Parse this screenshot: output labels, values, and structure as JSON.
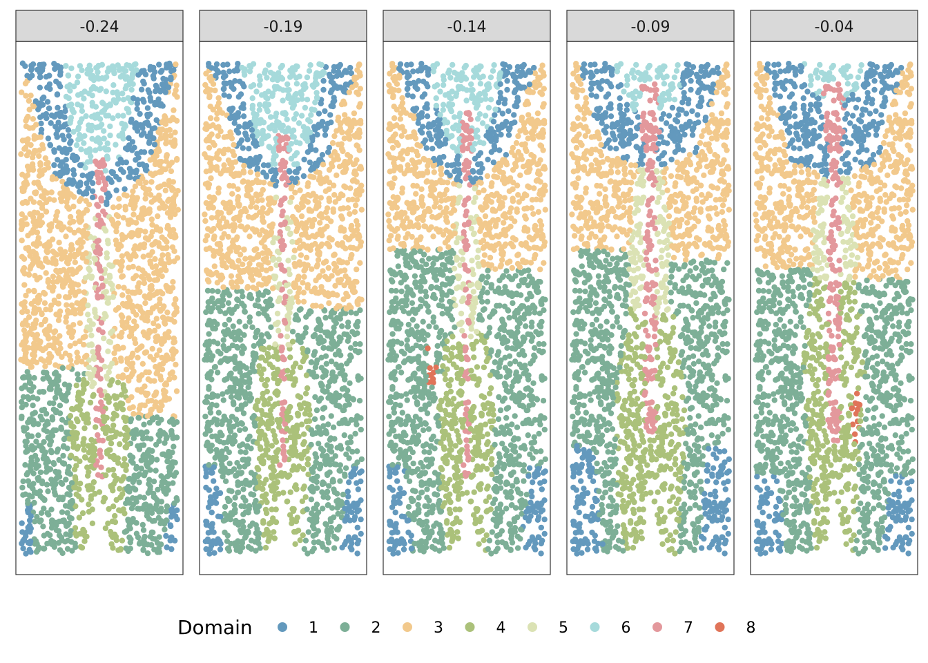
{
  "chart_data": {
    "type": "scatter",
    "description_note": "",
    "facets": [
      {
        "label": "-0.24"
      },
      {
        "label": "-0.19"
      },
      {
        "label": "-0.14"
      },
      {
        "label": "-0.09"
      },
      {
        "label": "-0.04"
      }
    ],
    "legend": {
      "title": "Domain",
      "position": "bottom",
      "entries": [
        {
          "label": "1",
          "color": "#6399BD"
        },
        {
          "label": "2",
          "color": "#7DAF97"
        },
        {
          "label": "3",
          "color": "#F2C98C"
        },
        {
          "label": "4",
          "color": "#ABC17A"
        },
        {
          "label": "5",
          "color": "#DBE2B4"
        },
        {
          "label": "6",
          "color": "#A6DADB"
        },
        {
          "label": "7",
          "color": "#E3989C"
        },
        {
          "label": "8",
          "color": "#E07459"
        }
      ]
    },
    "grid": false,
    "axes_visible": false
  }
}
